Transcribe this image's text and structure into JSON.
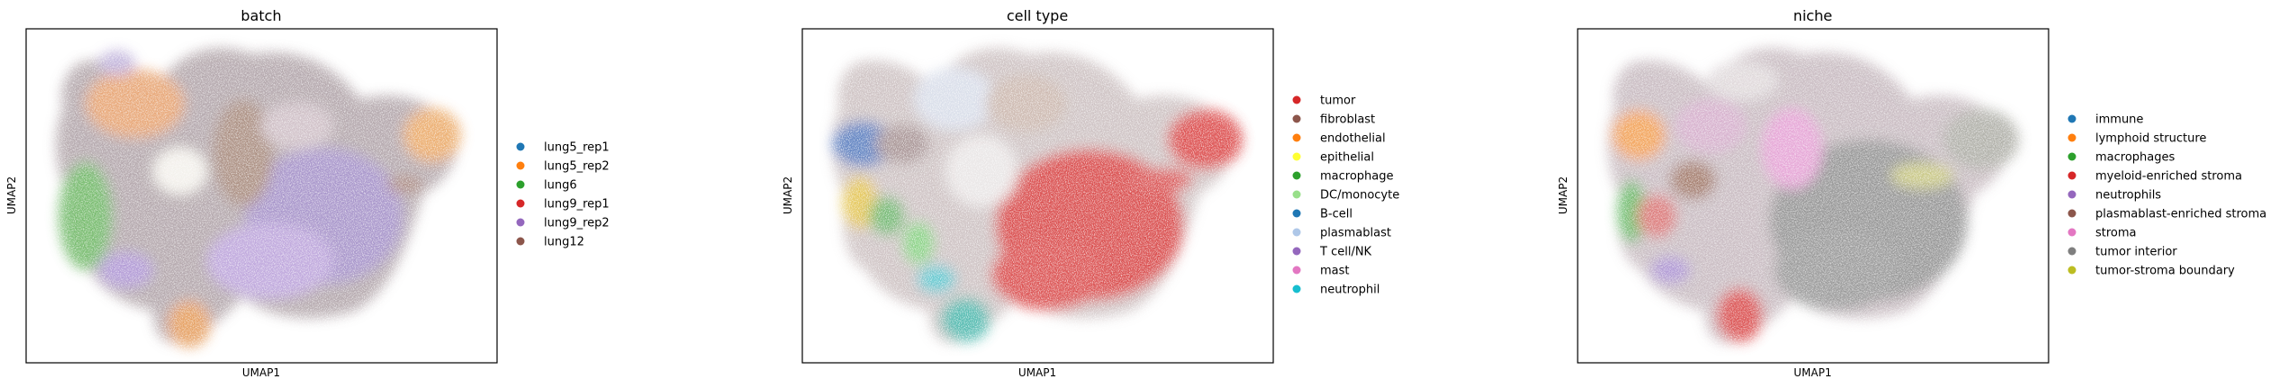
{
  "figure": {
    "panels": [
      {
        "title": "batch",
        "xlabel": "UMAP1",
        "ylabel": "UMAP2",
        "legend_position": "right",
        "legend": [
          {
            "label": "lung5_rep1",
            "color": "#1f77b4"
          },
          {
            "label": "lung5_rep2",
            "color": "#ff7f0e"
          },
          {
            "label": "lung6",
            "color": "#2ca02c"
          },
          {
            "label": "lung9_rep1",
            "color": "#d62728"
          },
          {
            "label": "lung9_rep2",
            "color": "#9467bd"
          },
          {
            "label": "lung12",
            "color": "#8c564b"
          }
        ]
      },
      {
        "title": "cell type",
        "xlabel": "UMAP1",
        "ylabel": "UMAP2",
        "legend_position": "right",
        "legend": [
          {
            "label": "tumor",
            "color": "#d62728"
          },
          {
            "label": "fibroblast",
            "color": "#8c564b"
          },
          {
            "label": "endothelial",
            "color": "#ff7f0e"
          },
          {
            "label": "epithelial",
            "color": "#ffff33"
          },
          {
            "label": "macrophage",
            "color": "#2ca02c"
          },
          {
            "label": "DC/monocyte",
            "color": "#98df8a"
          },
          {
            "label": "B-cell",
            "color": "#1f77b4"
          },
          {
            "label": "plasmablast",
            "color": "#aec7e8"
          },
          {
            "label": "T cell/NK",
            "color": "#9467bd"
          },
          {
            "label": "mast",
            "color": "#e377c2"
          },
          {
            "label": "neutrophil",
            "color": "#17becf"
          }
        ]
      },
      {
        "title": "niche",
        "xlabel": "UMAP1",
        "ylabel": "UMAP2",
        "legend_position": "right",
        "legend": [
          {
            "label": "immune",
            "color": "#1f77b4"
          },
          {
            "label": "lymphoid structure",
            "color": "#ff7f0e"
          },
          {
            "label": "macrophages",
            "color": "#2ca02c"
          },
          {
            "label": "myeloid-enriched stroma",
            "color": "#d62728"
          },
          {
            "label": "neutrophils",
            "color": "#9467bd"
          },
          {
            "label": "plasmablast-enriched stroma",
            "color": "#8c564b"
          },
          {
            "label": "stroma",
            "color": "#e377c2"
          },
          {
            "label": "tumor interior",
            "color": "#7f7f7f"
          },
          {
            "label": "tumor-stroma boundary",
            "color": "#bcbd22"
          }
        ]
      }
    ]
  },
  "chart_data": [
    {
      "type": "scatter",
      "title": "batch",
      "xlabel": "UMAP1",
      "ylabel": "UMAP2",
      "grid": false,
      "legend_placement": "right",
      "series": [
        {
          "name": "lung5_rep1",
          "color": "#1f77b4"
        },
        {
          "name": "lung5_rep2",
          "color": "#ff7f0e"
        },
        {
          "name": "lung6",
          "color": "#2ca02c"
        },
        {
          "name": "lung9_rep1",
          "color": "#d62728"
        },
        {
          "name": "lung9_rep2",
          "color": "#9467bd"
        },
        {
          "name": "lung12",
          "color": "#8c564b"
        }
      ]
    },
    {
      "type": "scatter",
      "title": "cell type",
      "xlabel": "UMAP1",
      "ylabel": "UMAP2",
      "grid": false,
      "legend_placement": "right",
      "series": [
        {
          "name": "tumor",
          "color": "#d62728"
        },
        {
          "name": "fibroblast",
          "color": "#8c564b"
        },
        {
          "name": "endothelial",
          "color": "#ff7f0e"
        },
        {
          "name": "epithelial",
          "color": "#ffff33"
        },
        {
          "name": "macrophage",
          "color": "#2ca02c"
        },
        {
          "name": "DC/monocyte",
          "color": "#98df8a"
        },
        {
          "name": "B-cell",
          "color": "#1f77b4"
        },
        {
          "name": "plasmablast",
          "color": "#aec7e8"
        },
        {
          "name": "T cell/NK",
          "color": "#9467bd"
        },
        {
          "name": "mast",
          "color": "#e377c2"
        },
        {
          "name": "neutrophil",
          "color": "#17becf"
        }
      ]
    },
    {
      "type": "scatter",
      "title": "niche",
      "xlabel": "UMAP1",
      "ylabel": "UMAP2",
      "grid": false,
      "legend_placement": "right",
      "series": [
        {
          "name": "immune",
          "color": "#1f77b4"
        },
        {
          "name": "lymphoid structure",
          "color": "#ff7f0e"
        },
        {
          "name": "macrophages",
          "color": "#2ca02c"
        },
        {
          "name": "myeloid-enriched stroma",
          "color": "#d62728"
        },
        {
          "name": "neutrophils",
          "color": "#9467bd"
        },
        {
          "name": "plasmablast-enriched stroma",
          "color": "#8c564b"
        },
        {
          "name": "stroma",
          "color": "#e377c2"
        },
        {
          "name": "tumor interior",
          "color": "#7f7f7f"
        },
        {
          "name": "tumor-stroma boundary",
          "color": "#bcbd22"
        }
      ]
    }
  ]
}
